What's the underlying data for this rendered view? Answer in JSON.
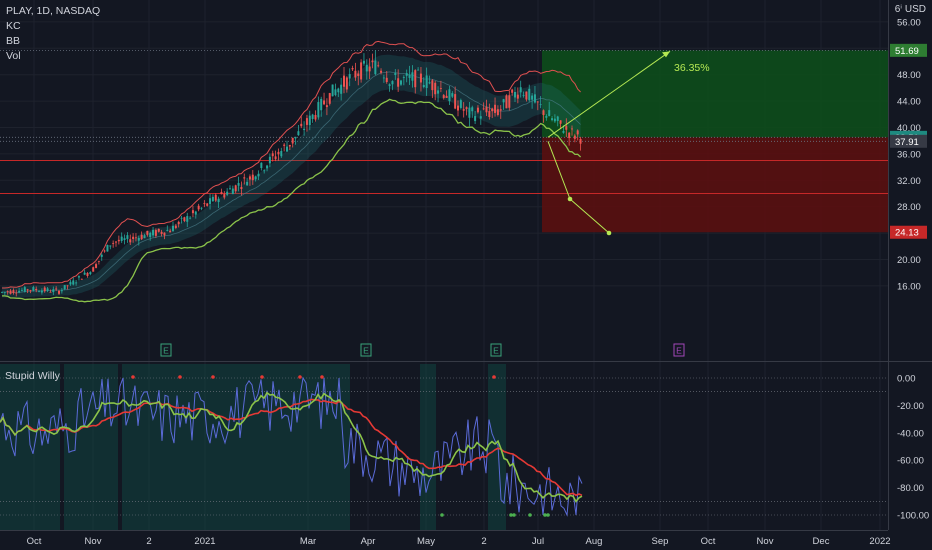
{
  "legend": {
    "symbol": "PLAY, 1D, NASDAQ",
    "ind1": "KC",
    "ind2": "BB",
    "ind3": "Vol"
  },
  "indicator_title": "Stupid Willy",
  "currency_label": "USD",
  "currency_prefix": "6ⁱ",
  "colors": {
    "background": "#131722",
    "up": "#26a69a",
    "down": "#ef5350",
    "target_zone": "#0d4d1b",
    "stop_zone": "#5a1010",
    "arrow": "#b5e853",
    "sma_green": "#8bc34a",
    "sma_red": "#e53935",
    "willy": "#5b6bd8"
  },
  "chart_data": [
    {
      "type": "candlestick",
      "symbol": "PLAY",
      "interval": "1D",
      "exchange": "NASDAQ",
      "y_ticks": [
        16.0,
        20.0,
        24.0,
        28.0,
        32.0,
        36.0,
        40.0,
        44.0,
        48.0,
        52.0,
        56.0
      ],
      "x_ticks": [
        "Oct",
        "Nov",
        "2",
        "2021",
        "Mar",
        "Apr",
        "May",
        "2",
        "Jul",
        "Aug",
        "Sep",
        "Oct",
        "Nov",
        "Dec",
        "2022"
      ],
      "price_labels": [
        {
          "value": 51.69,
          "label": "51.69",
          "color": "#2e7d32"
        },
        {
          "value": 38.51,
          "label": "38.51",
          "color": "#1e8a80"
        },
        {
          "value": 37.91,
          "label": "37.91",
          "color": "#363a45"
        },
        {
          "value": 24.13,
          "label": "24.13",
          "color": "#c62828"
        }
      ],
      "annotation": "36.35%",
      "earnings_markers": [
        "E",
        "E",
        "E",
        "E"
      ],
      "horizontal_levels": [
        35.0,
        30.0
      ],
      "price_path": [
        [
          "2020-09-15",
          15.0
        ],
        [
          "2020-10-01",
          15.5
        ],
        [
          "2020-10-15",
          15.2
        ],
        [
          "2020-11-01",
          18.5
        ],
        [
          "2020-11-10",
          22.5
        ],
        [
          "2020-11-25",
          23.5
        ],
        [
          "2020-12-10",
          24.5
        ],
        [
          "2021-01-01",
          29.0
        ],
        [
          "2021-01-20",
          32.5
        ],
        [
          "2021-02-10",
          38.0
        ],
        [
          "2021-03-01",
          45.0
        ],
        [
          "2021-03-15",
          48.5
        ],
        [
          "2021-03-25",
          49.5
        ],
        [
          "2021-04-01",
          47.0
        ],
        [
          "2021-04-15",
          47.5
        ],
        [
          "2021-04-25",
          46.0
        ],
        [
          "2021-05-10",
          42.0
        ],
        [
          "2021-05-25",
          42.5
        ],
        [
          "2021-06-05",
          46.0
        ],
        [
          "2021-06-20",
          41.5
        ],
        [
          "2021-07-01",
          39.0
        ],
        [
          "2021-07-06",
          38.51
        ]
      ],
      "long_position": {
        "entry": 38.51,
        "target": 51.69,
        "stop": 24.13
      }
    },
    {
      "type": "line",
      "name": "Stupid Willy",
      "y_ticks": [
        0.0,
        -20.0,
        -40.0,
        -60.0,
        -80.0,
        -100.0
      ],
      "tick_labels": [
        "0.00",
        "-20.00",
        "-40.00",
        "-60.00",
        "-80.00",
        "-100.00"
      ],
      "ylim": [
        -100,
        5
      ]
    }
  ]
}
